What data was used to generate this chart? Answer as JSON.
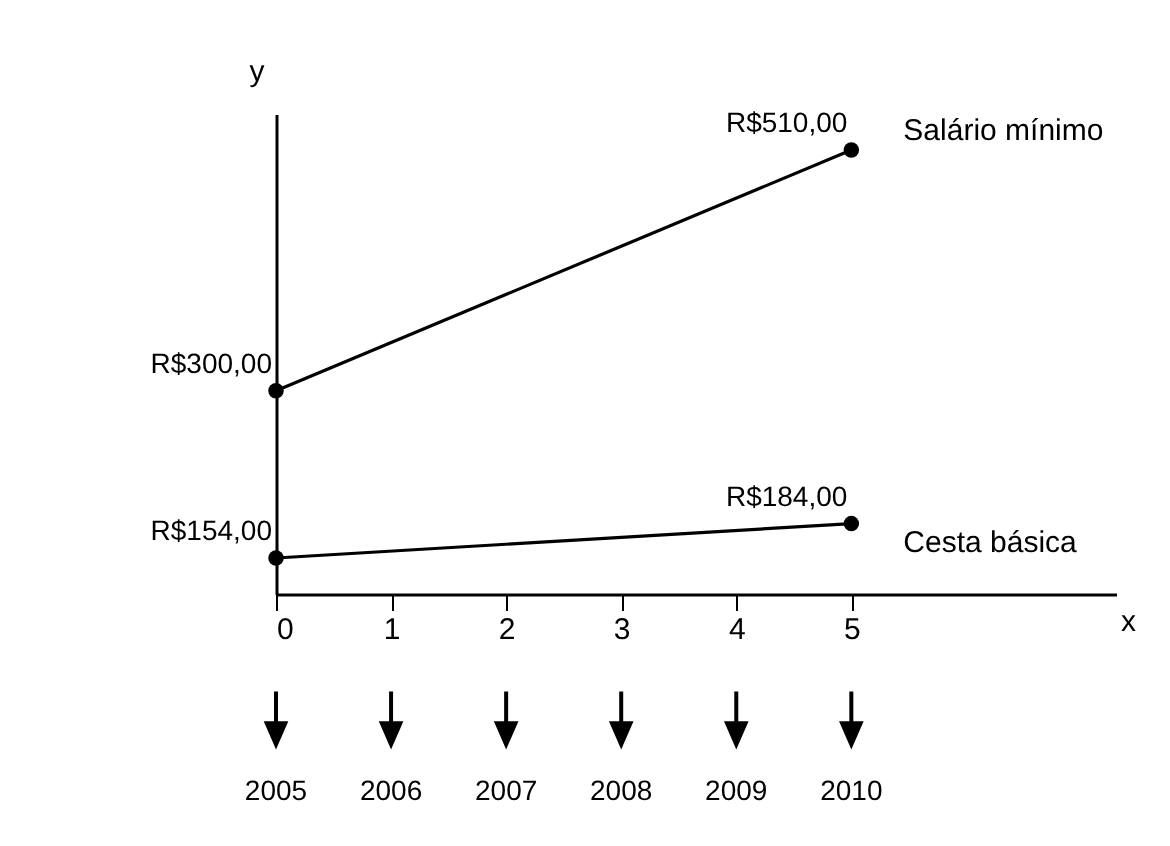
{
  "chart_data": {
    "type": "line",
    "xlabel": "x",
    "ylabel": "y",
    "x": [
      0,
      5
    ],
    "series": [
      {
        "name": "Salário mínimo",
        "color": "#000000",
        "values": [
          300,
          510
        ],
        "value_labels": [
          "R$300,00",
          "R$510,00"
        ]
      },
      {
        "name": "Cesta básica",
        "color": "#000000",
        "values": [
          154,
          184
        ],
        "value_labels": [
          "R$154,00",
          "R$184,00"
        ]
      }
    ],
    "xlim": [
      0,
      7.3
    ],
    "xticks": [
      0,
      1,
      2,
      3,
      4,
      5
    ],
    "tick_labels": "x",
    "marker": "circle",
    "legend": false,
    "grid": false,
    "annotations": [
      "2005",
      "2006",
      "2007",
      "2008",
      "2009",
      "2010"
    ]
  }
}
